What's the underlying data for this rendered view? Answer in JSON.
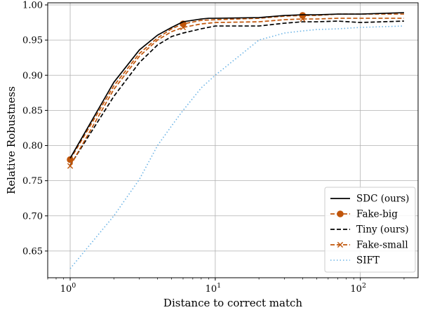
{
  "chart_data": {
    "type": "line",
    "xlabel": "Distance to correct match",
    "ylabel": "Relative Robustness",
    "xscale": "log",
    "xlim": [
      0.7,
      250
    ],
    "ylim": [
      0.612,
      1.003
    ],
    "x_ticks": [
      {
        "value": 1,
        "base": "10",
        "exp": "0"
      },
      {
        "value": 10,
        "base": "10",
        "exp": "1"
      },
      {
        "value": 100,
        "base": "10",
        "exp": "2"
      }
    ],
    "y_ticks": [
      0.65,
      0.7,
      0.75,
      0.8,
      0.85,
      0.9,
      0.95,
      1.0
    ],
    "y_tick_labels": [
      "0.65",
      "0.70",
      "0.75",
      "0.80",
      "0.85",
      "0.90",
      "0.95",
      "1.00"
    ],
    "grid": true,
    "legend_position": "lower right",
    "series": [
      {
        "name": "SDC (ours)",
        "color": "#000000",
        "dash": "solid",
        "marker": "none",
        "x": [
          1,
          2,
          3,
          4,
          5,
          6,
          8,
          9,
          10,
          20,
          30,
          40,
          50,
          70,
          100,
          200
        ],
        "y": [
          0.782,
          0.89,
          0.936,
          0.957,
          0.968,
          0.976,
          0.98,
          0.981,
          0.981,
          0.982,
          0.985,
          0.986,
          0.986,
          0.987,
          0.987,
          0.989
        ]
      },
      {
        "name": "Fake-big",
        "color": "#c0550a",
        "dash": "dashed",
        "marker": "circle",
        "x": [
          1,
          2,
          3,
          4,
          5,
          6,
          8,
          10,
          20,
          30,
          40,
          50,
          70,
          100,
          200
        ],
        "y": [
          0.78,
          0.885,
          0.931,
          0.953,
          0.966,
          0.973,
          0.978,
          0.979,
          0.981,
          0.984,
          0.985,
          0.985,
          0.987,
          0.987,
          0.987
        ]
      },
      {
        "name": "Tiny (ours)",
        "color": "#000000",
        "dash": "dashed",
        "marker": "none",
        "x": [
          1,
          2,
          3,
          4,
          5,
          6,
          8,
          10,
          20,
          30,
          40,
          50,
          70,
          100,
          200
        ],
        "y": [
          0.772,
          0.87,
          0.918,
          0.943,
          0.955,
          0.96,
          0.966,
          0.97,
          0.97,
          0.974,
          0.976,
          0.976,
          0.977,
          0.975,
          0.977
        ]
      },
      {
        "name": "Fake-small",
        "color": "#c0550a",
        "dash": "dashed",
        "marker": "x",
        "x": [
          1,
          2,
          3,
          4,
          5,
          6,
          8,
          10,
          20,
          30,
          40,
          50,
          70,
          100,
          200
        ],
        "y": [
          0.771,
          0.88,
          0.927,
          0.95,
          0.962,
          0.968,
          0.973,
          0.975,
          0.976,
          0.979,
          0.98,
          0.98,
          0.981,
          0.981,
          0.981
        ]
      },
      {
        "name": "SIFT",
        "color": "#6cb4e6",
        "dash": "dotted",
        "marker": "none",
        "x": [
          1,
          2,
          3,
          4,
          5,
          6,
          8,
          10,
          20,
          30,
          40,
          50,
          70,
          100,
          200
        ],
        "y": [
          0.625,
          0.7,
          0.752,
          0.8,
          0.828,
          0.85,
          0.882,
          0.9,
          0.95,
          0.96,
          0.963,
          0.965,
          0.966,
          0.968,
          0.97
        ]
      }
    ]
  }
}
